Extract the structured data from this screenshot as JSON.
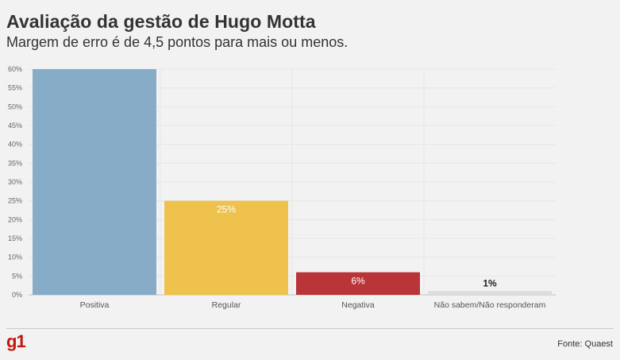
{
  "header": {
    "title": "Avaliação da gestão de Hugo Motta",
    "subtitle": "Margem de erro é de 4,5 pontos para mais ou menos."
  },
  "chart_data": {
    "type": "bar",
    "title": "Avaliação da gestão de Hugo Motta",
    "subtitle": "Margem de erro é de 4,5 pontos para mais ou menos.",
    "categories": [
      "Positiva",
      "Regular",
      "Negativa",
      "Não sabem/Não responderam"
    ],
    "values": [
      60,
      25,
      6,
      1
    ],
    "data_labels": [
      "",
      "25%",
      "6%",
      "1%"
    ],
    "colors": [
      "#87acc8",
      "#eec24d",
      "#b93538",
      "#dddddd"
    ],
    "label_colors": [
      "#ffffff",
      "#ffffff",
      "#ffffff",
      "#222222"
    ],
    "ylim": [
      0,
      60
    ],
    "yticks": [
      0,
      5,
      10,
      15,
      20,
      25,
      30,
      35,
      40,
      45,
      50,
      55,
      60
    ],
    "ytick_suffix": "%",
    "grid": true,
    "legend": "none"
  },
  "footer": {
    "logo": "g1",
    "source": "Fonte: Quaest"
  }
}
